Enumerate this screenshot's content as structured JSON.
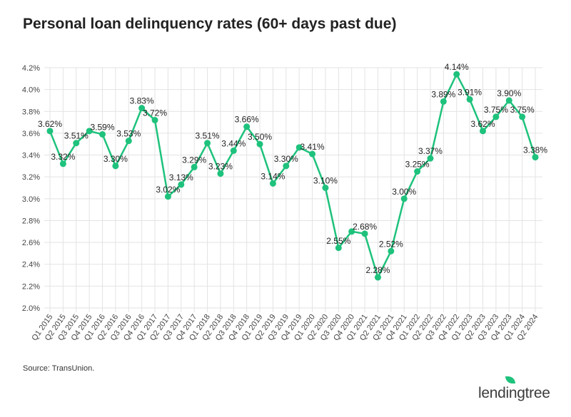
{
  "title": "Personal loan delinquency rates (60+ days past due)",
  "source": "Source: TransUnion.",
  "logo": "lendingtree",
  "chart_data": {
    "type": "line",
    "title": "Personal loan delinquency rates (60+ days past due)",
    "xlabel": "",
    "ylabel": "",
    "ylim": [
      2.0,
      4.2
    ],
    "yticks": [
      "2.0%",
      "2.2%",
      "2.4%",
      "2.6%",
      "2.8%",
      "3.0%",
      "3.2%",
      "3.4%",
      "3.6%",
      "3.8%",
      "4.0%",
      "4.2%"
    ],
    "grid": true,
    "line_color": "#1ec27c",
    "categories": [
      "Q1 2015",
      "Q2 2015",
      "Q3 2015",
      "Q4 2015",
      "Q1 2016",
      "Q2 2016",
      "Q3 2016",
      "Q4 2016",
      "Q1 2017",
      "Q2 2017",
      "Q3 2017",
      "Q4 2017",
      "Q1 2018",
      "Q2 2018",
      "Q3 2018",
      "Q4 2018",
      "Q1 2019",
      "Q2 2019",
      "Q3 2019",
      "Q4 2019",
      "Q1 2020",
      "Q2 2020",
      "Q3 2020",
      "Q4 2020",
      "Q1 2021",
      "Q2 2021",
      "Q3 2021",
      "Q4 2021",
      "Q1 2022",
      "Q2 2022",
      "Q3 2022",
      "Q4 2022",
      "Q1 2023",
      "Q2 2023",
      "Q3 2023",
      "Q4 2023",
      "Q1 2024",
      "Q2 2024"
    ],
    "values": [
      3.62,
      3.32,
      3.51,
      3.62,
      3.59,
      3.3,
      3.53,
      3.83,
      3.72,
      3.02,
      3.13,
      3.29,
      3.51,
      3.23,
      3.44,
      3.66,
      3.5,
      3.14,
      3.3,
      3.47,
      3.41,
      3.1,
      2.55,
      2.7,
      2.68,
      2.28,
      2.52,
      3.0,
      3.25,
      3.37,
      3.89,
      4.14,
      3.91,
      3.62,
      3.75,
      3.9,
      3.75,
      3.38
    ],
    "labels": [
      "3.62%",
      "3.32%",
      "3.51%",
      null,
      "3.59%",
      "3.30%",
      "3.53%",
      "3.83%",
      "3.72%",
      "3.02%",
      "3.13%",
      "3.29%",
      "3.51%",
      "3.23%",
      "3.44%",
      "3.66%",
      "3.50%",
      "3.14%",
      "3.30%",
      null,
      "3.41%",
      "3.10%",
      "2.55%",
      null,
      "2.68%",
      "2.28%",
      "2.52%",
      "3.00%",
      "3.25%",
      "3.37%",
      "3.89%",
      "4.14%",
      "3.91%",
      "3.62%",
      "3.75%",
      "3.90%",
      "3.75%",
      "3.38%"
    ]
  }
}
